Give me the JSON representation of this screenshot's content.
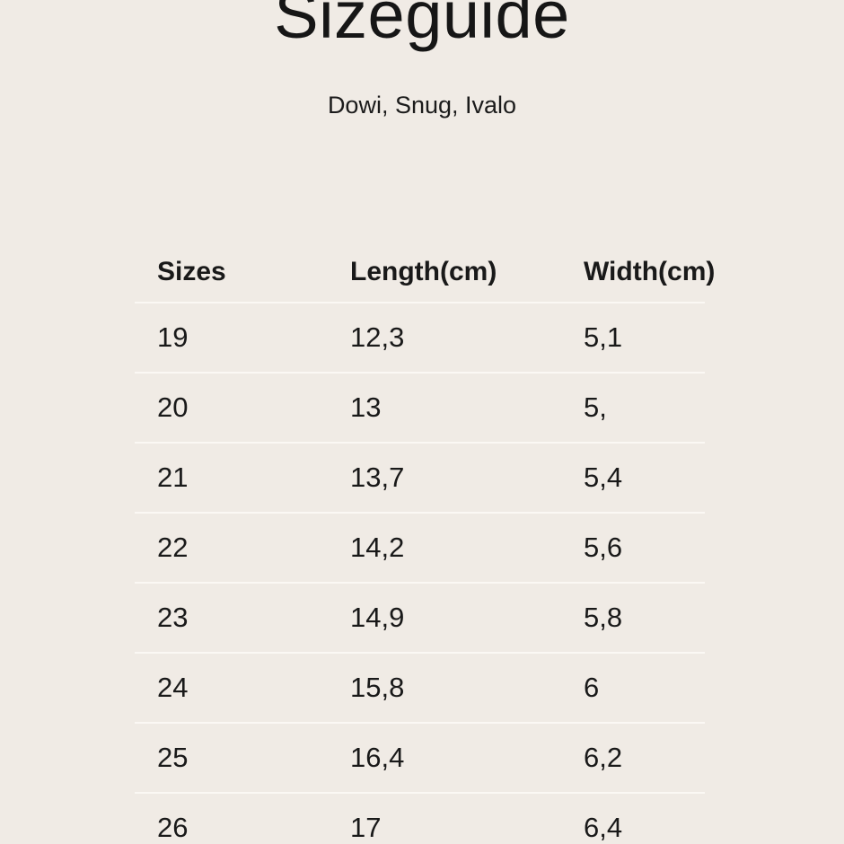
{
  "page": {
    "title": "Sizeguide",
    "subtitle": "Dowi, Snug, Ivalo"
  },
  "table": {
    "columns": [
      "Sizes",
      "Length(cm)",
      "Width(cm)"
    ],
    "rows": [
      {
        "size": "19",
        "length": "12,3",
        "width": "5,1"
      },
      {
        "size": "20",
        "length": "13",
        "width": "5,"
      },
      {
        "size": "21",
        "length": "13,7",
        "width": "5,4"
      },
      {
        "size": "22",
        "length": "14,2",
        "width": "5,6"
      },
      {
        "size": "23",
        "length": "14,9",
        "width": "5,8"
      },
      {
        "size": "24",
        "length": "15,8",
        "width": "6"
      },
      {
        "size": "25",
        "length": "16,4",
        "width": "6,2"
      },
      {
        "size": "26",
        "length": "17",
        "width": "6,4"
      }
    ]
  },
  "colors": {
    "background": "#f0ebe5",
    "text": "#191919",
    "divider": "#fbf8f4"
  }
}
